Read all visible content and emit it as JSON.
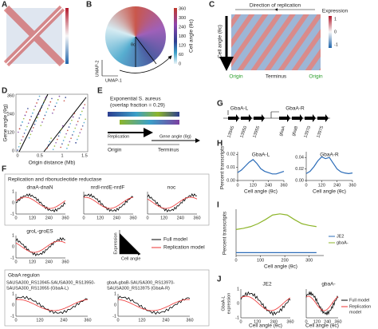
{
  "panels": {
    "a": {
      "letter": "A"
    },
    "b": {
      "letter": "B",
      "colorbar_label": "Cell angle (θc)",
      "colorbar_ticks": [
        360,
        300,
        240,
        180,
        120,
        60,
        0
      ],
      "angle": "θc",
      "y_label": "UMAP-2",
      "x_label": "UMAP-1"
    },
    "c": {
      "letter": "C",
      "title": "Direction of replication",
      "colorbar_label": "Expression",
      "colorbar_ticks": [
        1,
        0,
        -1
      ],
      "y_label": "Cell angle (θc)",
      "x_labels": [
        "Origin",
        "Terminus",
        "Origin"
      ]
    },
    "d": {
      "letter": "D",
      "y_label": "Gene angle (θg)",
      "x_label": "Origin distance (Mb)",
      "yticks": [
        360,
        240,
        120,
        0
      ],
      "xticks": [
        0,
        0.5,
        1,
        1.5
      ]
    },
    "e": {
      "letter": "E",
      "title": "Exponential S. aureus",
      "subtitle": "(overlap fraction = 0.29)",
      "replication": "Replication",
      "gene_angle": "Gene angle (θg)",
      "origin": "Origin",
      "terminus": "Terminus"
    },
    "f": {
      "letter": "F",
      "box1_title": "Replication and ribonucleotide reductase",
      "plots": [
        "dnaA-dnaN",
        "nrdI-nrdE-nrdF",
        "noc",
        "groL-groES"
      ],
      "legend": [
        "Full model",
        "Replication model"
      ],
      "y_axis": "Expression",
      "x_axis": "Cell angle",
      "box2_title": "GbaA regulon",
      "gbaa_l": [
        "SAUSA300_RS13945-SAUSA300_RS13950-",
        "SAUSA300_RS13955 (GbaA-L)"
      ],
      "gbaa_r": [
        "gbaA-gbaB-SAUSA300_RS13970-",
        "SAUSA300_RS13975 (GbaA-R)"
      ],
      "yticks": [
        1,
        0,
        -1
      ],
      "xticks": [
        0,
        120,
        240,
        360
      ]
    },
    "g": {
      "letter": "G",
      "left": "GbaA-L",
      "right": "GbaA-R",
      "genes": [
        "13945",
        "13950",
        "13955",
        "gbaA",
        "gbaB",
        "13970",
        "13975"
      ]
    },
    "h": {
      "letter": "H",
      "y_label": "Percent transcripts",
      "x_label": "Cell angle (θc)",
      "plots": [
        {
          "type": "line",
          "title": "GbaA-L",
          "x": [
            0,
            30,
            60,
            90,
            120,
            150,
            180,
            210,
            240,
            270,
            300,
            330,
            360
          ],
          "values": [
            0.006,
            0.008,
            0.011,
            0.014,
            0.016,
            0.013,
            0.009,
            0.007,
            0.006,
            0.005,
            0.005,
            0.006,
            0.007
          ],
          "color": "#2b6cb8",
          "xlim": [
            0,
            360
          ],
          "ylim": [
            0,
            0.022
          ],
          "xticks": [
            0,
            120,
            240,
            360
          ],
          "yticks": [
            {
              "value": 0,
              "label": "0.00"
            },
            0.01,
            0.02
          ]
        },
        {
          "type": "line",
          "title": "GbaA-R",
          "x": [
            0,
            30,
            60,
            90,
            120,
            150,
            180,
            210,
            240,
            270,
            300,
            330,
            360
          ],
          "values": [
            0.012,
            0.016,
            0.024,
            0.034,
            0.041,
            0.038,
            0.04,
            0.03,
            0.02,
            0.015,
            0.013,
            0.012,
            0.013
          ],
          "color": "#2b6cb8",
          "xlim": [
            0,
            360
          ],
          "ylim": [
            0,
            0.05
          ],
          "xticks": [
            0,
            120,
            240,
            360
          ],
          "yticks": [
            {
              "value": 0,
              "label": "0.00"
            },
            0.02,
            0.04
          ]
        }
      ]
    },
    "i": {
      "letter": "I",
      "type": "line",
      "y_label": "Percent transcripts",
      "x_label": "Cell angle (θc)",
      "x": [
        0,
        30,
        60,
        90,
        120,
        150,
        180,
        210,
        240,
        270,
        300,
        330
      ],
      "xlim": [
        0,
        360
      ],
      "ylim": [
        0,
        0.8
      ],
      "xticks": [
        0,
        100,
        200,
        300
      ],
      "series": [
        {
          "name": "JE2",
          "color": "#2b6cb8",
          "values": [
            0.05,
            0.05,
            0.05,
            0.05,
            0.05,
            0.05,
            0.05,
            0.05,
            0.05,
            0.05,
            0.05,
            0.05
          ]
        },
        {
          "name": "gbaA-",
          "color": "#8db52a",
          "values": [
            0.45,
            0.47,
            0.5,
            0.55,
            0.62,
            0.7,
            0.72,
            0.7,
            0.62,
            0.55,
            0.52,
            0.5
          ]
        }
      ]
    },
    "j": {
      "letter": "J",
      "plots": [
        "JE2",
        "gbaA-"
      ],
      "y_label": [
        "GbaA-L",
        "expression"
      ],
      "x_label": "Cell angle (θc)",
      "legend": [
        "Full model",
        "Replication",
        "model"
      ],
      "yticks": [
        1,
        0,
        -1
      ],
      "xticks": [
        0,
        120,
        240,
        360
      ]
    }
  }
}
